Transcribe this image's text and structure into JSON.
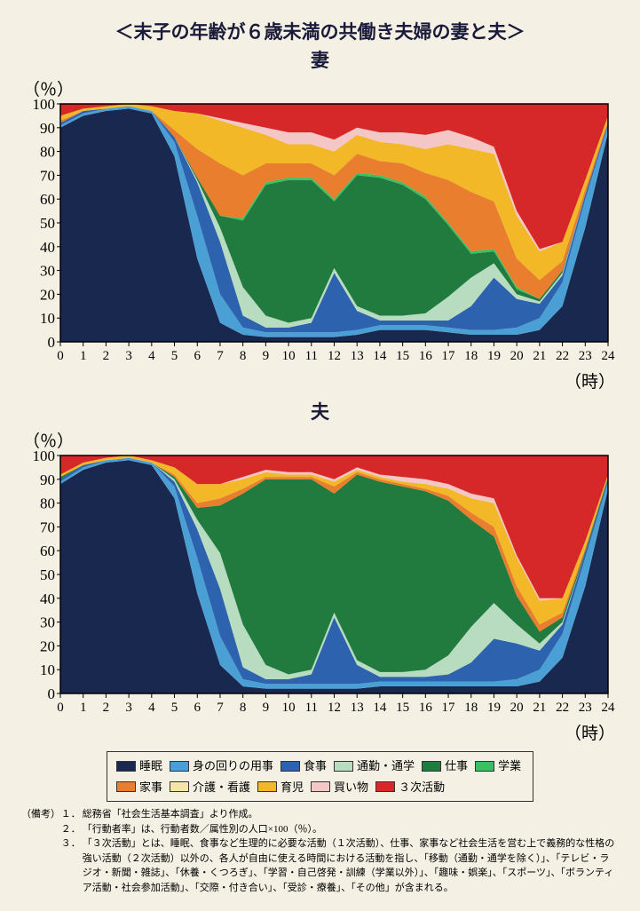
{
  "title": "＜末子の年齢が６歳未満の共働き夫婦の妻と夫＞",
  "subtitle_wife": "妻",
  "subtitle_husband": "夫",
  "y_unit": "（％）",
  "x_unit": "（時）",
  "yticks": [
    0,
    10,
    20,
    30,
    40,
    50,
    60,
    70,
    80,
    90,
    100
  ],
  "xticks": [
    0,
    1,
    2,
    3,
    4,
    5,
    6,
    7,
    8,
    9,
    10,
    11,
    12,
    13,
    14,
    15,
    16,
    17,
    18,
    19,
    20,
    21,
    22,
    23,
    24
  ],
  "categories": [
    {
      "key": "sleep",
      "label": "睡眠",
      "color": "#19284f"
    },
    {
      "key": "self_care",
      "label": "身の回りの用事",
      "color": "#4aa0d5"
    },
    {
      "key": "meal",
      "label": "食事",
      "color": "#2d62ae"
    },
    {
      "key": "commute",
      "label": "通勤・通学",
      "color": "#b8dcc0"
    },
    {
      "key": "work",
      "label": "仕事",
      "color": "#217a3e"
    },
    {
      "key": "study",
      "label": "学業",
      "color": "#3abf62"
    },
    {
      "key": "housework",
      "label": "家事",
      "color": "#e87e2e"
    },
    {
      "key": "nursing",
      "label": "介護・看護",
      "color": "#f5e6a8"
    },
    {
      "key": "childcare",
      "label": "育児",
      "color": "#f2b828"
    },
    {
      "key": "shopping",
      "label": "買い物",
      "color": "#f4c6c6"
    },
    {
      "key": "tertiary",
      "label": "３次活動",
      "color": "#d62828"
    }
  ],
  "chart_wife": {
    "type": "stacked-area-100",
    "xlim": [
      0,
      24
    ],
    "ylim": [
      0,
      100
    ],
    "background": "#f4f0e4",
    "border_color": "#000000",
    "series_order": [
      "sleep",
      "self_care",
      "meal",
      "commute",
      "work",
      "study",
      "housework",
      "nursing",
      "childcare",
      "shopping",
      "tertiary"
    ],
    "x": [
      0,
      1,
      2,
      3,
      4,
      5,
      6,
      7,
      8,
      9,
      10,
      11,
      12,
      13,
      14,
      15,
      16,
      17,
      18,
      19,
      20,
      21,
      22,
      23,
      24
    ],
    "data": {
      "sleep": [
        90,
        95,
        97,
        98,
        96,
        78,
        35,
        8,
        3,
        2,
        2,
        2,
        2,
        3,
        5,
        5,
        5,
        4,
        3,
        3,
        3,
        5,
        15,
        48,
        88
      ],
      "self_care": [
        1,
        1,
        1,
        1,
        1,
        6,
        18,
        12,
        3,
        2,
        2,
        2,
        2,
        2,
        2,
        2,
        2,
        2,
        2,
        2,
        3,
        5,
        10,
        12,
        3
      ],
      "meal": [
        1,
        1,
        0,
        0,
        0,
        2,
        14,
        22,
        5,
        2,
        2,
        4,
        25,
        8,
        2,
        2,
        2,
        3,
        10,
        22,
        12,
        6,
        3,
        2,
        1
      ],
      "commute": [
        0,
        0,
        0,
        0,
        0,
        0,
        1,
        6,
        12,
        5,
        2,
        2,
        2,
        2,
        2,
        2,
        3,
        10,
        12,
        6,
        2,
        1,
        1,
        0,
        0
      ],
      "work": [
        0,
        0,
        0,
        0,
        0,
        0,
        1,
        5,
        28,
        55,
        60,
        58,
        28,
        55,
        58,
        55,
        48,
        30,
        10,
        5,
        2,
        1,
        1,
        0,
        0
      ],
      "study": [
        0,
        0,
        0,
        0,
        0,
        0,
        0,
        0,
        1,
        1,
        1,
        1,
        1,
        1,
        1,
        1,
        1,
        1,
        1,
        1,
        1,
        0,
        0,
        0,
        0
      ],
      "housework": [
        1,
        0,
        0,
        0,
        0,
        3,
        12,
        22,
        18,
        8,
        6,
        6,
        10,
        8,
        6,
        8,
        10,
        18,
        25,
        20,
        12,
        8,
        4,
        2,
        1
      ],
      "nursing": [
        0,
        0,
        0,
        0,
        0,
        0,
        0,
        0,
        0,
        0,
        0,
        0,
        0,
        0,
        0,
        0,
        0,
        0,
        0,
        0,
        0,
        0,
        0,
        0,
        0
      ],
      "childcare": [
        2,
        1,
        1,
        1,
        2,
        8,
        15,
        18,
        20,
        12,
        8,
        8,
        10,
        8,
        8,
        8,
        10,
        15,
        18,
        20,
        18,
        12,
        8,
        4,
        2
      ],
      "shopping": [
        0,
        0,
        0,
        0,
        0,
        0,
        0,
        1,
        2,
        3,
        5,
        5,
        5,
        3,
        4,
        5,
        6,
        6,
        5,
        3,
        2,
        1,
        0,
        0,
        0
      ],
      "tertiary": [
        5,
        2,
        1,
        0,
        1,
        3,
        4,
        6,
        8,
        10,
        12,
        12,
        15,
        10,
        12,
        12,
        13,
        11,
        14,
        18,
        45,
        61,
        58,
        32,
        5
      ]
    }
  },
  "chart_husband": {
    "type": "stacked-area-100",
    "xlim": [
      0,
      24
    ],
    "ylim": [
      0,
      100
    ],
    "background": "#f4f0e4",
    "border_color": "#000000",
    "series_order": [
      "sleep",
      "self_care",
      "meal",
      "commute",
      "work",
      "study",
      "housework",
      "nursing",
      "childcare",
      "shopping",
      "tertiary"
    ],
    "x": [
      0,
      1,
      2,
      3,
      4,
      5,
      6,
      7,
      8,
      9,
      10,
      11,
      12,
      13,
      14,
      15,
      16,
      17,
      18,
      19,
      20,
      21,
      22,
      23,
      24
    ],
    "data": {
      "sleep": [
        88,
        94,
        97,
        98,
        96,
        82,
        42,
        12,
        3,
        2,
        2,
        2,
        2,
        2,
        3,
        3,
        3,
        3,
        3,
        3,
        3,
        5,
        15,
        45,
        86
      ],
      "self_care": [
        1,
        1,
        1,
        1,
        1,
        5,
        15,
        12,
        3,
        2,
        2,
        2,
        2,
        2,
        2,
        2,
        2,
        2,
        2,
        2,
        3,
        5,
        10,
        12,
        3
      ],
      "meal": [
        1,
        1,
        0,
        0,
        0,
        2,
        12,
        20,
        5,
        2,
        2,
        4,
        28,
        8,
        2,
        2,
        2,
        3,
        8,
        18,
        15,
        8,
        4,
        2,
        1
      ],
      "commute": [
        0,
        0,
        0,
        0,
        0,
        1,
        4,
        15,
        18,
        6,
        2,
        2,
        2,
        2,
        2,
        2,
        3,
        8,
        15,
        15,
        8,
        3,
        1,
        0,
        0
      ],
      "work": [
        1,
        0,
        0,
        0,
        0,
        1,
        5,
        20,
        55,
        78,
        82,
        80,
        50,
        78,
        80,
        78,
        75,
        65,
        45,
        28,
        12,
        5,
        2,
        1,
        1
      ],
      "study": [
        0,
        0,
        0,
        0,
        0,
        0,
        0,
        0,
        0,
        0,
        0,
        0,
        0,
        0,
        0,
        0,
        0,
        0,
        0,
        0,
        0,
        0,
        0,
        0,
        0
      ],
      "housework": [
        0,
        0,
        0,
        0,
        0,
        1,
        2,
        3,
        2,
        1,
        1,
        1,
        3,
        1,
        1,
        1,
        1,
        2,
        3,
        4,
        4,
        3,
        2,
        1,
        0
      ],
      "nursing": [
        0,
        0,
        0,
        0,
        0,
        0,
        0,
        0,
        0,
        0,
        0,
        0,
        0,
        0,
        0,
        0,
        0,
        0,
        0,
        0,
        0,
        0,
        0,
        0,
        0
      ],
      "childcare": [
        1,
        1,
        1,
        1,
        1,
        3,
        8,
        6,
        4,
        2,
        1,
        1,
        2,
        1,
        1,
        1,
        2,
        3,
        6,
        10,
        12,
        10,
        6,
        3,
        1
      ],
      "shopping": [
        0,
        0,
        0,
        0,
        0,
        0,
        0,
        0,
        1,
        1,
        1,
        1,
        1,
        1,
        1,
        2,
        2,
        2,
        2,
        2,
        1,
        1,
        0,
        0,
        0
      ],
      "tertiary": [
        8,
        3,
        1,
        0,
        2,
        5,
        12,
        12,
        9,
        6,
        7,
        7,
        10,
        5,
        8,
        9,
        10,
        12,
        16,
        18,
        42,
        60,
        60,
        36,
        8
      ]
    }
  },
  "notes_label": "（備考）",
  "notes": [
    {
      "n": "１．",
      "t": "総務省「社会生活基本調査」より作成。"
    },
    {
      "n": "２．",
      "t": "「行動者率」は、行動者数／属性別の人口×100（％）。"
    },
    {
      "n": "３．",
      "t": "「３次活動」とは、睡眠、食事など生理的に必要な活動（１次活動）、仕事、家事など社会生活を営む上で義務的な性格の強い活動（２次活動）以外の、各人が自由に使える時間における活動を指し、「移動（通勤・通学を除く）」、「テレビ・ラジオ・新聞・雑誌」、「休養・くつろぎ」、「学習・自己啓発・訓練（学業以外）」、「趣味・娯楽」、「スポーツ」、「ボランティア活動・社会参加活動」、「交際・付き合い」、「受診・療養」、「その他」が含まれる。"
    }
  ]
}
